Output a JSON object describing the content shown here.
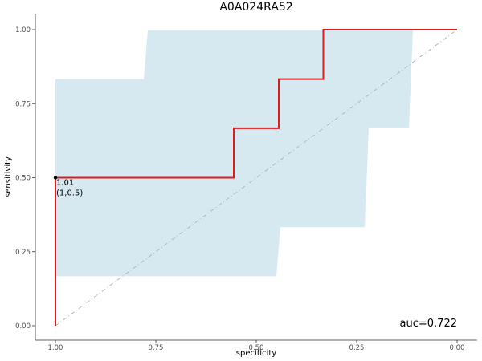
{
  "chart_data": {
    "type": "line",
    "title": "A0A024RA52",
    "xlabel": "specificity",
    "ylabel": "sensitivity",
    "x_reversed": true,
    "xlim": [
      1.0,
      0.0
    ],
    "ylim": [
      0.0,
      1.0
    ],
    "x_ticks": [
      1.0,
      0.75,
      0.5,
      0.25,
      0.0
    ],
    "x_tick_labels": [
      "1.00",
      "0.75",
      "0.50",
      "0.25",
      "0.00"
    ],
    "y_ticks": [
      0.0,
      0.25,
      0.5,
      0.75,
      1.0
    ],
    "y_tick_labels": [
      "0.00",
      "0.25",
      "0.50",
      "0.75",
      "1.00"
    ],
    "grid": false,
    "colors": {
      "curve": "#e31a1c",
      "ci_band": "#d6e9f1",
      "diagonal": "#aaaaaa",
      "point": "#000000"
    },
    "series": [
      {
        "specificity": [
          1.0,
          1.0,
          1.0,
          0.556,
          0.556,
          0.444,
          0.444,
          0.333,
          0.333,
          0.0
        ],
        "sensitivity": [
          0.0,
          0.167,
          0.5,
          0.5,
          0.667,
          0.667,
          0.833,
          0.833,
          1.0,
          1.0
        ]
      }
    ],
    "ci_band": {
      "upper": [
        [
          1.0,
          0.833
        ],
        [
          0.78,
          0.833
        ],
        [
          0.77,
          1.0
        ],
        [
          0.11,
          1.0
        ]
      ],
      "lower": [
        [
          1.0,
          0.167
        ],
        [
          0.45,
          0.167
        ],
        [
          0.44,
          0.333
        ],
        [
          0.23,
          0.333
        ],
        [
          0.22,
          0.667
        ],
        [
          0.12,
          0.667
        ],
        [
          0.11,
          1.0
        ]
      ]
    },
    "diagonal": [
      [
        1.0,
        0.0
      ],
      [
        0.0,
        1.0
      ]
    ],
    "annotation": {
      "specificity": 1.0,
      "sensitivity": 0.5,
      "line1": "1.01",
      "line2": "(1,0.5)"
    },
    "auc_label": "auc=0.722"
  }
}
